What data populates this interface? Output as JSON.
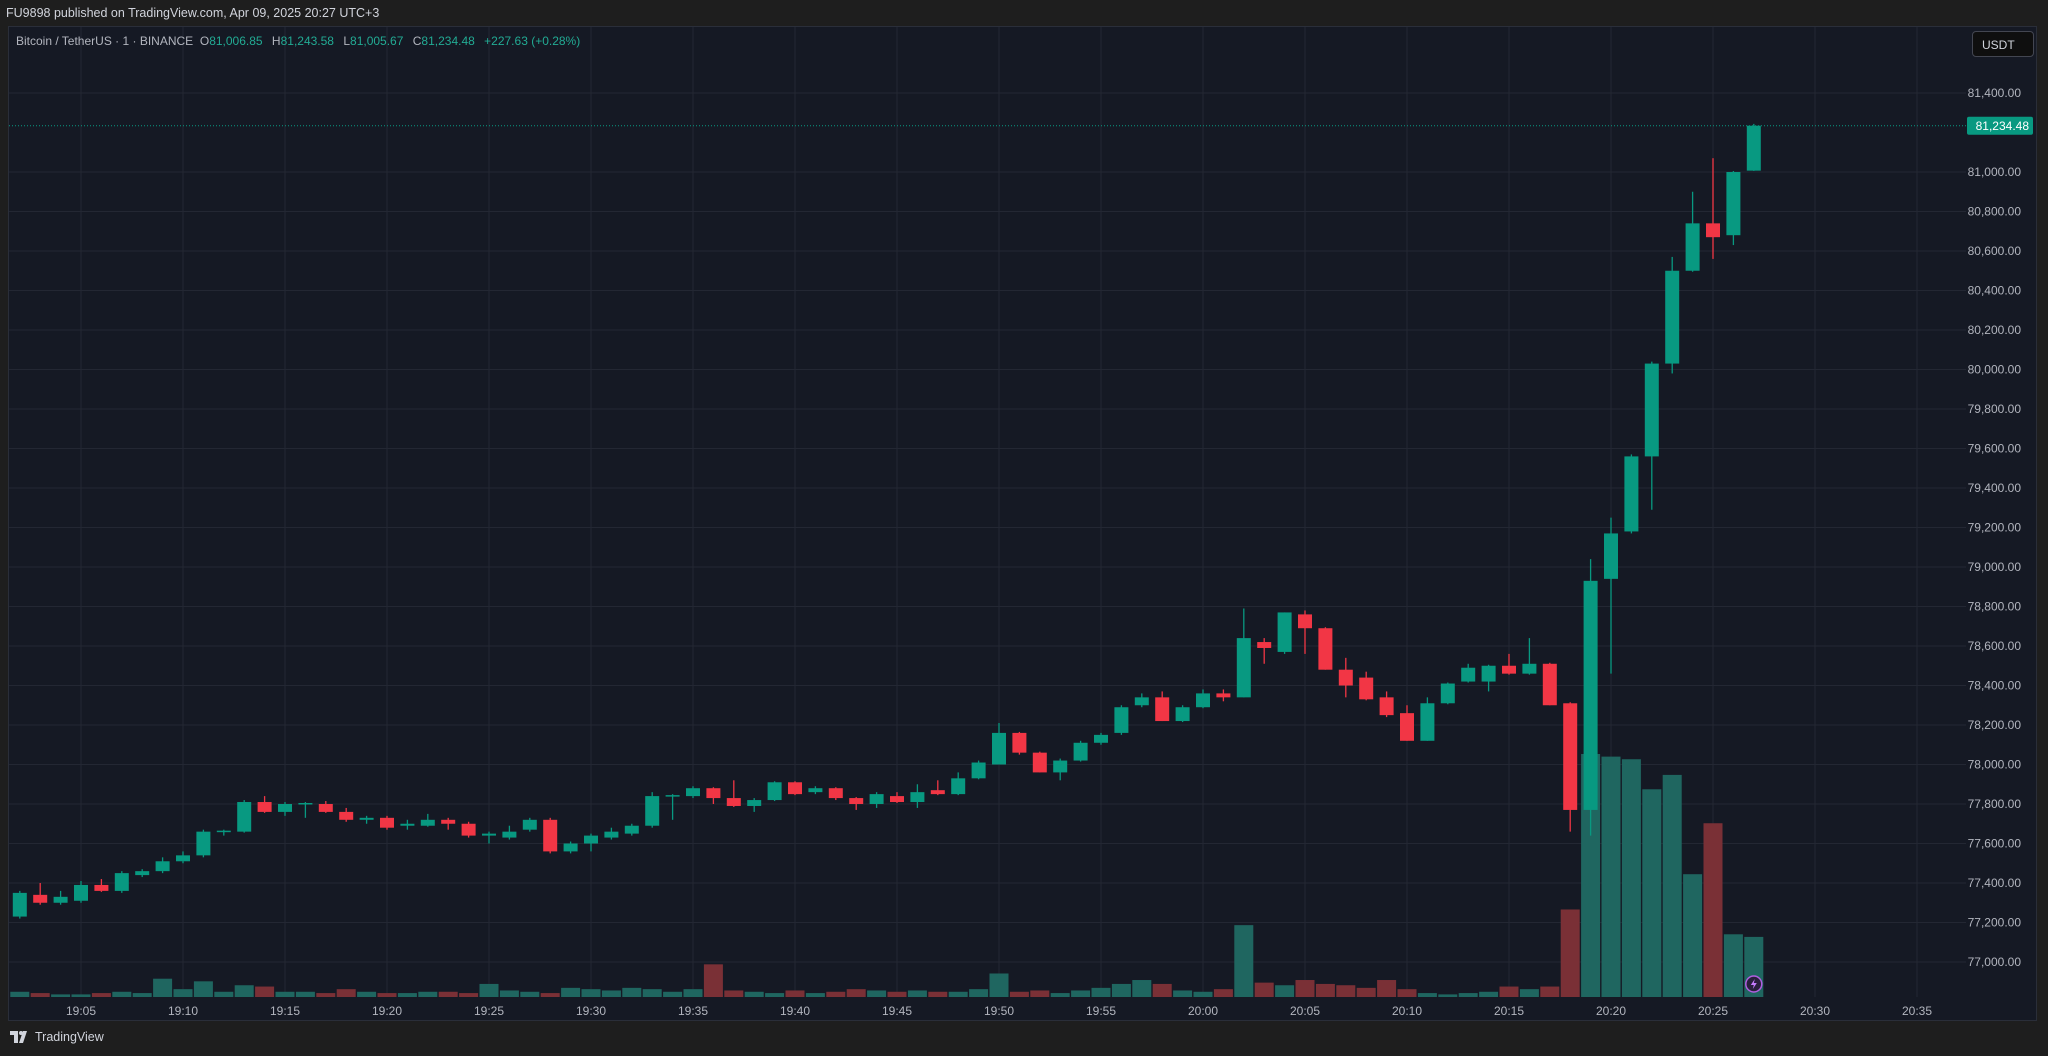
{
  "header": {
    "published": "FU9898 published on TradingView.com, Apr 09, 2025 20:27 UTC+3"
  },
  "legend": {
    "symbol": "Bitcoin / TetherUS · 1 · BINANCE",
    "o_label": "O",
    "o": "81,006.85",
    "h_label": "H",
    "h": "81,243.58",
    "l_label": "L",
    "l": "81,005.67",
    "c_label": "C",
    "c": "81,234.48",
    "change": "+227.63 (+0.28%)"
  },
  "currency_button": "USDT",
  "footer": {
    "brand": "TradingView",
    "logo_icon": "tradingview-logo-icon"
  },
  "colors": {
    "up": "#089981",
    "down": "#f23645",
    "up_volume": "#1f6660",
    "down_volume": "#7a3036",
    "background": "#151924",
    "grid": "#232733",
    "last_price": "#089981",
    "axis_text": "#b2b5be"
  },
  "chart_data": {
    "type": "candlestick",
    "interval": "1 minute",
    "ylim": [
      76800,
      81500
    ],
    "y_ticks": [
      "77,000.00",
      "77,200.00",
      "77,400.00",
      "77,600.00",
      "77,800.00",
      "78,000.00",
      "78,200.00",
      "78,400.00",
      "78,600.00",
      "78,800.00",
      "79,000.00",
      "79,200.00",
      "79,400.00",
      "79,600.00",
      "79,800.00",
      "80,000.00",
      "80,200.00",
      "80,400.00",
      "80,600.00",
      "80,800.00",
      "81,000.00",
      "81,400.00"
    ],
    "x_ticks": [
      "19:05",
      "19:10",
      "19:15",
      "19:20",
      "19:25",
      "19:30",
      "19:35",
      "19:40",
      "19:45",
      "19:50",
      "19:55",
      "20:00",
      "20:05",
      "20:10",
      "20:15",
      "20:20",
      "20:25",
      "20:30",
      "20:35"
    ],
    "last_price": 81234.48,
    "last_price_label": "81,234.48",
    "grid": true,
    "candle_fields": [
      "time",
      "open",
      "high",
      "low",
      "close",
      "volume_relative"
    ],
    "candles": [
      [
        "19:02",
        77230,
        77360,
        77220,
        77350,
        4
      ],
      [
        "19:03",
        77340,
        77400,
        77290,
        77300,
        3
      ],
      [
        "19:04",
        77300,
        77360,
        77290,
        77330,
        2
      ],
      [
        "19:05",
        77310,
        77410,
        77300,
        77390,
        2
      ],
      [
        "19:06",
        77390,
        77420,
        77355,
        77360,
        3
      ],
      [
        "19:07",
        77360,
        77460,
        77350,
        77450,
        4
      ],
      [
        "19:08",
        77440,
        77470,
        77430,
        77460,
        3
      ],
      [
        "19:09",
        77460,
        77530,
        77450,
        77510,
        14
      ],
      [
        "19:10",
        77510,
        77560,
        77500,
        77540,
        6
      ],
      [
        "19:11",
        77540,
        77670,
        77530,
        77660,
        12
      ],
      [
        "19:12",
        77660,
        77670,
        77640,
        77665,
        4
      ],
      [
        "19:13",
        77660,
        77820,
        77655,
        77810,
        9
      ],
      [
        "19:14",
        77810,
        77840,
        77755,
        77760,
        8
      ],
      [
        "19:15",
        77760,
        77810,
        77740,
        77800,
        4
      ],
      [
        "19:16",
        77800,
        77810,
        77730,
        77805,
        4
      ],
      [
        "19:17",
        77800,
        77815,
        77755,
        77760,
        3
      ],
      [
        "19:18",
        77760,
        77780,
        77710,
        77720,
        6
      ],
      [
        "19:19",
        77720,
        77740,
        77700,
        77730,
        4
      ],
      [
        "19:20",
        77730,
        77740,
        77670,
        77680,
        3
      ],
      [
        "19:21",
        77690,
        77720,
        77670,
        77700,
        3
      ],
      [
        "19:22",
        77690,
        77750,
        77685,
        77720,
        4
      ],
      [
        "19:23",
        77720,
        77730,
        77670,
        77700,
        4
      ],
      [
        "19:24",
        77700,
        77710,
        77630,
        77640,
        3
      ],
      [
        "19:25",
        77640,
        77660,
        77600,
        77650,
        10
      ],
      [
        "19:26",
        77630,
        77690,
        77620,
        77660,
        5
      ],
      [
        "19:27",
        77670,
        77730,
        77660,
        77720,
        4
      ],
      [
        "19:28",
        77720,
        77730,
        77550,
        77560,
        3
      ],
      [
        "19:29",
        77560,
        77610,
        77550,
        77600,
        7
      ],
      [
        "19:30",
        77600,
        77650,
        77560,
        77640,
        6
      ],
      [
        "19:31",
        77630,
        77680,
        77620,
        77660,
        5
      ],
      [
        "19:32",
        77650,
        77700,
        77640,
        77690,
        7
      ],
      [
        "19:33",
        77690,
        77860,
        77680,
        77840,
        6
      ],
      [
        "19:34",
        77840,
        77850,
        77720,
        77845,
        4
      ],
      [
        "19:35",
        77840,
        77890,
        77830,
        77880,
        6
      ],
      [
        "19:36",
        77880,
        77885,
        77800,
        77830,
        25
      ],
      [
        "19:37",
        77830,
        77920,
        77785,
        77790,
        5
      ],
      [
        "19:38",
        77790,
        77830,
        77760,
        77820,
        4
      ],
      [
        "19:39",
        77820,
        77915,
        77815,
        77910,
        3
      ],
      [
        "19:40",
        77910,
        77915,
        77845,
        77850,
        5
      ],
      [
        "19:41",
        77860,
        77890,
        77850,
        77880,
        3
      ],
      [
        "19:42",
        77880,
        77885,
        77820,
        77830,
        4
      ],
      [
        "19:43",
        77830,
        77835,
        77770,
        77800,
        6
      ],
      [
        "19:44",
        77800,
        77860,
        77780,
        77850,
        5
      ],
      [
        "19:45",
        77840,
        77860,
        77805,
        77810,
        4
      ],
      [
        "19:46",
        77810,
        77900,
        77780,
        77860,
        5
      ],
      [
        "19:47",
        77870,
        77920,
        77845,
        77850,
        4
      ],
      [
        "19:48",
        77850,
        77960,
        77845,
        77930,
        4
      ],
      [
        "19:49",
        77930,
        78020,
        77925,
        78010,
        6
      ],
      [
        "19:50",
        78000,
        78210,
        78000,
        78160,
        18
      ],
      [
        "19:51",
        78160,
        78165,
        78050,
        78060,
        4
      ],
      [
        "19:52",
        78060,
        78065,
        77960,
        77960,
        5
      ],
      [
        "19:53",
        77960,
        78030,
        77920,
        78020,
        3
      ],
      [
        "19:54",
        78020,
        78120,
        78015,
        78110,
        5
      ],
      [
        "19:55",
        78110,
        78160,
        78100,
        78150,
        7
      ],
      [
        "19:56",
        78160,
        78300,
        78150,
        78290,
        10
      ],
      [
        "19:57",
        78300,
        78360,
        78290,
        78340,
        13
      ],
      [
        "19:58",
        78340,
        78370,
        78220,
        78220,
        10
      ],
      [
        "19:59",
        78220,
        78300,
        78215,
        78290,
        5
      ],
      [
        "20:00",
        78290,
        78380,
        78285,
        78360,
        4
      ],
      [
        "20:01",
        78360,
        78380,
        78320,
        78340,
        6
      ],
      [
        "20:02",
        78340,
        78790,
        78340,
        78640,
        55
      ],
      [
        "20:03",
        78620,
        78640,
        78510,
        78590,
        11
      ],
      [
        "20:04",
        78570,
        78770,
        78560,
        78770,
        9
      ],
      [
        "20:05",
        78760,
        78780,
        78560,
        78690,
        13
      ],
      [
        "20:06",
        78690,
        78695,
        78480,
        78480,
        10
      ],
      [
        "20:07",
        78480,
        78540,
        78340,
        78400,
        9
      ],
      [
        "20:08",
        78440,
        78470,
        78325,
        78330,
        7
      ],
      [
        "20:09",
        78340,
        78370,
        78240,
        78250,
        13
      ],
      [
        "20:10",
        78260,
        78300,
        78120,
        78120,
        6
      ],
      [
        "20:11",
        78120,
        78340,
        78120,
        78310,
        3
      ],
      [
        "20:12",
        78310,
        78415,
        78305,
        78410,
        2
      ],
      [
        "20:13",
        78420,
        78510,
        78415,
        78490,
        3
      ],
      [
        "20:14",
        78420,
        78505,
        78370,
        78500,
        4
      ],
      [
        "20:15",
        78500,
        78560,
        78455,
        78460,
        8
      ],
      [
        "20:16",
        78460,
        78640,
        78455,
        78510,
        6
      ],
      [
        "20:17",
        78510,
        78515,
        78300,
        78300,
        8
      ],
      [
        "20:18",
        78310,
        78315,
        77660,
        77770,
        67
      ],
      [
        "20:19",
        77770,
        79040,
        77640,
        78930,
        186
      ],
      [
        "20:20",
        78940,
        79250,
        78460,
        79170,
        184
      ],
      [
        "20:21",
        79180,
        79570,
        79170,
        79560,
        182
      ],
      [
        "20:22",
        79560,
        80040,
        79290,
        80030,
        159
      ],
      [
        "20:23",
        80030,
        80570,
        79980,
        80500,
        170
      ],
      [
        "20:24",
        80500,
        80900,
        80495,
        80740,
        94
      ],
      [
        "20:25",
        80740,
        81070,
        80560,
        80670,
        133
      ],
      [
        "20:26",
        80680,
        81005,
        80630,
        81000,
        48
      ],
      [
        "20:27",
        81006.85,
        81243.58,
        81005.67,
        81234.48,
        46
      ]
    ]
  }
}
